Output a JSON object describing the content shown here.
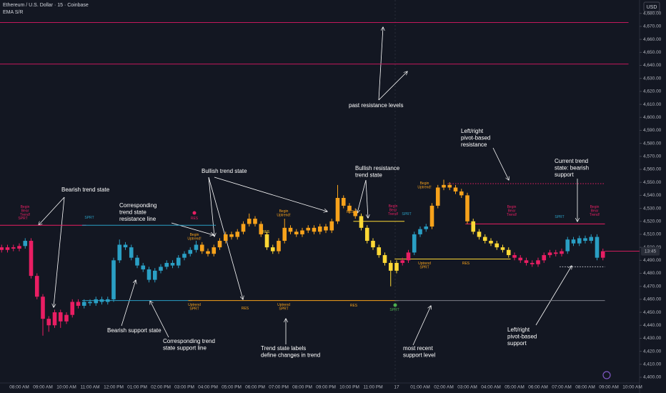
{
  "chart_data": {
    "type": "candlestick",
    "title": "Ethereum / U.S. Dollar · 15 · Coinbase",
    "subtitle": "EMA S/R",
    "currency": "USD",
    "countdown": "13:45",
    "categories": [
      null,
      null,
      null,
      "08:00 AM",
      null,
      null,
      null,
      "09:00 AM",
      null,
      null,
      null,
      "10:00 AM",
      null,
      null,
      null,
      "11:00 AM",
      null,
      null,
      null,
      "12:00 PM",
      null,
      null,
      null,
      "01:00 PM",
      null,
      null,
      null,
      "02:00 PM",
      null,
      null,
      null,
      "03:00 PM",
      null,
      null,
      null,
      "04:00 PM",
      null,
      null,
      null,
      "05:00 PM",
      null,
      null,
      null,
      "06:00 PM",
      null,
      null,
      null,
      "07:00 PM",
      null,
      null,
      null,
      "08:00 PM",
      null,
      null,
      null,
      "09:00 PM",
      null,
      null,
      null,
      "10:00 PM",
      null,
      null,
      null,
      "11:00 PM",
      null,
      null,
      null,
      "17",
      null,
      null,
      null,
      "01:00 AM",
      null,
      null,
      null,
      "02:00 AM",
      null,
      null,
      null,
      "03:00 AM",
      null,
      null,
      null,
      "04:00 AM",
      null,
      null,
      null,
      "05:00 AM",
      null,
      null,
      null,
      "06:00 AM",
      null,
      null,
      null,
      "07:00 AM",
      null,
      null,
      null,
      "08:00 AM",
      null,
      null,
      null,
      "09:00 AM",
      null,
      null,
      null,
      "10:00 AM"
    ],
    "open": [
      4500,
      4498,
      4500,
      4499,
      4501,
      4505,
      4478,
      4462,
      4445,
      4440,
      4450,
      4443,
      4448,
      4458,
      4455,
      4458,
      4457,
      4460,
      4458,
      4460,
      4490,
      4502,
      4500,
      4492,
      4486,
      4483,
      4475,
      4482,
      4485,
      4488,
      4486,
      4492,
      4495,
      4498,
      4502,
      4497,
      4495,
      4500,
      4505,
      4510,
      4508,
      4512,
      4518,
      4522,
      4518,
      4510,
      4500,
      4497,
      4505,
      4515,
      4512,
      4510,
      4513,
      4515,
      4512,
      4516,
      4513,
      4520,
      4538,
      4532,
      4528,
      4524,
      4515,
      4505,
      4500,
      4494,
      4488,
      4482,
      4488,
      4490,
      4496,
      4510,
      4514,
      4516,
      4532,
      4546,
      4548,
      4546,
      4543,
      4540,
      4520,
      4512,
      4508,
      4505,
      4503,
      4500,
      4498,
      4494,
      4492,
      4490,
      4488,
      4487,
      4490,
      4494,
      4496,
      4495,
      4497,
      4506,
      4503,
      4507,
      4505,
      4508,
      4492,
      null,
      null,
      null,
      null,
      null
    ],
    "high": [
      4502,
      4502,
      4502,
      4503,
      4507,
      4507,
      4480,
      4464,
      4447,
      4452,
      4452,
      4450,
      4460,
      4460,
      4460,
      4460,
      4462,
      4462,
      4462,
      4492,
      4506,
      4504,
      4502,
      4494,
      4488,
      4485,
      4484,
      4487,
      4490,
      4490,
      4494,
      4497,
      4500,
      4505,
      4504,
      4499,
      4502,
      4507,
      4512,
      4512,
      4514,
      4520,
      4526,
      4524,
      4520,
      4512,
      4502,
      4507,
      4522,
      4517,
      4514,
      4515,
      4517,
      4517,
      4518,
      4518,
      4522,
      4548,
      4540,
      4534,
      4530,
      4526,
      4517,
      4507,
      4502,
      4496,
      4490,
      4490,
      4492,
      4498,
      4512,
      4516,
      4518,
      4534,
      4548,
      4552,
      4550,
      4548,
      4545,
      4542,
      4522,
      4514,
      4510,
      4507,
      4505,
      4502,
      4500,
      4496,
      4494,
      4492,
      4490,
      4492,
      4496,
      4498,
      4498,
      4499,
      4508,
      4508,
      4509,
      4509,
      4510,
      4510,
      4499,
      null,
      null,
      null,
      null,
      null
    ],
    "low": [
      4496,
      4496,
      4497,
      4497,
      4499,
      4476,
      4460,
      4432,
      4435,
      4438,
      4438,
      4441,
      4446,
      4453,
      4453,
      4455,
      4455,
      4456,
      4456,
      4458,
      4488,
      4498,
      4490,
      4484,
      4481,
      4473,
      4473,
      4480,
      4483,
      4484,
      4484,
      4490,
      4493,
      4496,
      4495,
      4493,
      4493,
      4498,
      4503,
      4506,
      4506,
      4510,
      4516,
      4516,
      4508,
      4498,
      4495,
      4495,
      4503,
      4510,
      4508,
      4508,
      4511,
      4510,
      4510,
      4511,
      4511,
      4518,
      4530,
      4526,
      4522,
      4513,
      4503,
      4498,
      4492,
      4486,
      4470,
      4480,
      4486,
      4488,
      4494,
      4508,
      4512,
      4514,
      4530,
      4544,
      4544,
      4541,
      4538,
      4518,
      4510,
      4506,
      4503,
      4501,
      4498,
      4496,
      4492,
      4490,
      4488,
      4486,
      4485,
      4485,
      4488,
      4492,
      4493,
      4493,
      4495,
      4501,
      4501,
      4503,
      4503,
      4490,
      4490,
      null,
      null,
      null,
      null,
      null
    ],
    "close": [
      4498,
      4500,
      4499,
      4501,
      4505,
      4478,
      4462,
      4445,
      4440,
      4450,
      4443,
      4448,
      4458,
      4455,
      4458,
      4457,
      4460,
      4458,
      4460,
      4490,
      4502,
      4500,
      4492,
      4486,
      4483,
      4475,
      4482,
      4485,
      4488,
      4486,
      4492,
      4495,
      4498,
      4502,
      4497,
      4495,
      4500,
      4505,
      4510,
      4508,
      4512,
      4518,
      4522,
      4518,
      4510,
      4500,
      4497,
      4505,
      4515,
      4512,
      4510,
      4513,
      4515,
      4512,
      4516,
      4513,
      4520,
      4538,
      4532,
      4528,
      4524,
      4515,
      4505,
      4500,
      4494,
      4488,
      4482,
      4488,
      4490,
      4496,
      4510,
      4514,
      4516,
      4532,
      4546,
      4548,
      4546,
      4543,
      4540,
      4520,
      4512,
      4508,
      4505,
      4503,
      4500,
      4498,
      4494,
      4492,
      4490,
      4488,
      4487,
      4490,
      4494,
      4496,
      4495,
      4497,
      4506,
      4503,
      4507,
      4505,
      4508,
      4492,
      4497,
      null,
      null,
      null,
      null,
      null
    ],
    "colors": [
      "#e91e63",
      "#e91e63",
      "#e91e63",
      "#e91e63",
      "#2a9fc4",
      "#e91e63",
      "#e91e63",
      "#e91e63",
      "#e91e63",
      "#e91e63",
      "#e91e63",
      "#e91e63",
      "#e91e63",
      "#e91e63",
      "#2a9fc4",
      "#2a9fc4",
      "#2a9fc4",
      "#2a9fc4",
      "#2a9fc4",
      "#2a9fc4",
      "#2a9fc4",
      "#2a9fc4",
      "#2a9fc4",
      "#2a9fc4",
      "#2a9fc4",
      "#2a9fc4",
      "#2a9fc4",
      "#2a9fc4",
      "#2a9fc4",
      "#2a9fc4",
      "#2a9fc4",
      "#2a9fc4",
      "#2a9fc4",
      "#2a9fc4",
      "#f7a21b",
      "#f7a21b",
      "#f7a21b",
      "#f7a21b",
      "#f7a21b",
      "#f7a21b",
      "#f7a21b",
      "#f7a21b",
      "#f7a21b",
      "#f7a21b",
      "#f7a21b",
      "#fdd835",
      "#fdd835",
      "#f7a21b",
      "#f7a21b",
      "#f7a21b",
      "#f7a21b",
      "#f7a21b",
      "#f7a21b",
      "#f7a21b",
      "#f7a21b",
      "#f7a21b",
      "#f7a21b",
      "#f7a21b",
      "#f7a21b",
      "#f7a21b",
      "#f7a21b",
      "#fdd835",
      "#fdd835",
      "#fdd835",
      "#fdd835",
      "#fdd835",
      "#fdd835",
      "#fdd835",
      "#e91e63",
      "#e91e63",
      "#2a9fc4",
      "#2a9fc4",
      "#2a9fc4",
      "#f7a21b",
      "#f7a21b",
      "#f7a21b",
      "#f7a21b",
      "#f7a21b",
      "#f7a21b",
      "#f7a21b",
      "#fdd835",
      "#fdd835",
      "#fdd835",
      "#fdd835",
      "#fdd835",
      "#fdd835",
      "#fdd835",
      "#e91e63",
      "#e91e63",
      "#e91e63",
      "#e91e63",
      "#e91e63",
      "#e91e63",
      "#e91e63",
      "#e91e63",
      "#e91e63",
      "#2a9fc4",
      "#2a9fc4",
      "#2a9fc4",
      "#2a9fc4",
      "#2a9fc4",
      "#2a9fc4",
      "#e91e63",
      null,
      null,
      null,
      null,
      null
    ],
    "levels": [
      {
        "price": 4673,
        "from": 0,
        "to": 106,
        "color": "#c2185b"
      },
      {
        "price": 4641,
        "from": 0,
        "to": 106,
        "color": "#c2185b"
      },
      {
        "price": 4517,
        "from": 0,
        "to": 14,
        "color": "#e91e63"
      },
      {
        "price": 4517,
        "from": 14,
        "to": 36,
        "color": "#2a9fc4"
      },
      {
        "price": 4459,
        "from": 14,
        "to": 32,
        "color": "#2a9fc4"
      },
      {
        "price": 4459,
        "from": 32,
        "to": 67,
        "color": "#f7a21b"
      },
      {
        "price": 4459,
        "from": 67,
        "to": 102,
        "color": "#787b86"
      },
      {
        "price": 4520,
        "from": 60,
        "to": 68,
        "color": "#fdd835"
      },
      {
        "price": 4491,
        "from": 67,
        "to": 86,
        "color": "#fdd835"
      },
      {
        "price": 4518,
        "from": 79,
        "to": 102,
        "color": "#e91e63"
      },
      {
        "price": 4549,
        "from": 76,
        "to": 102,
        "color": "#e91e63",
        "dashed": true
      },
      {
        "price": 4485,
        "from": 95,
        "to": 102,
        "color": "#d1d4dc",
        "dashed": true
      }
    ],
    "state_labels": [
      {
        "lines": [
          "Begin",
          "Bear",
          "Trend!"
        ],
        "color": "#e91e63"
      },
      {
        "lines": [
          "SPRT"
        ],
        "color": "#e91e63"
      },
      {
        "lines": [
          "SPRT"
        ],
        "color": "#2a9fc4"
      },
      {
        "lines": [
          "RES"
        ],
        "color": "#e91e63"
      },
      {
        "lines": [
          "Begin",
          "Uptrend!"
        ],
        "color": "#f7a21b"
      },
      {
        "lines": [
          "RES"
        ],
        "color": "#fdd835"
      },
      {
        "lines": [
          "Begin",
          "Uptrend!"
        ],
        "color": "#f7a21b"
      },
      {
        "lines": [
          "RES"
        ],
        "color": "#f7a21b"
      },
      {
        "lines": [
          "Begin",
          "Bear",
          "Trend!"
        ],
        "color": "#e91e63"
      },
      {
        "lines": [
          "SPRT"
        ],
        "color": "#2a9fc4"
      },
      {
        "lines": [
          "Begin",
          "Uptrend!"
        ],
        "color": "#f7a21b"
      },
      {
        "lines": [
          "Uptrend",
          "SPRT"
        ],
        "color": "#f7a21b"
      },
      {
        "lines": [
          "RES"
        ],
        "color": "#f7a21b"
      },
      {
        "lines": [
          "Begin",
          "Bear",
          "Trend!"
        ],
        "color": "#e91e63"
      },
      {
        "lines": [
          "SPRT"
        ],
        "color": "#2a9fc4"
      },
      {
        "lines": [
          "Begin",
          "Bear",
          "Trend!"
        ],
        "color": "#e91e63"
      },
      {
        "lines": [
          "Uptrend",
          "SPRT"
        ],
        "color": "#f7a21b"
      },
      {
        "lines": [
          "RES"
        ],
        "color": "#f7a21b"
      },
      {
        "lines": [
          "Uptrend",
          "SPRT"
        ],
        "color": "#f7a21b"
      },
      {
        "lines": [
          "RES"
        ],
        "color": "#f7a21b"
      },
      {
        "lines": [
          "SPRT"
        ],
        "color": "#4caf50"
      }
    ],
    "annotations": [
      {
        "lines": [
          "Bearish  trend state"
        ]
      },
      {
        "lines": [
          "Corresponding",
          "trend state",
          "resistance line"
        ]
      },
      {
        "lines": [
          "Bullish trend state"
        ]
      },
      {
        "lines": [
          "Bullish resistance",
          "trend state"
        ]
      },
      {
        "lines": [
          "Left/right",
          "pivot-based",
          "resistance"
        ]
      },
      {
        "lines": [
          "Current trend",
          "state: bearish",
          "support"
        ]
      },
      {
        "lines": [
          "past resistance levels"
        ]
      },
      {
        "lines": [
          "Bearish support state"
        ]
      },
      {
        "lines": [
          "Corresponding trend",
          "state support line"
        ]
      },
      {
        "lines": [
          "Trend state labels",
          "define changes in trend"
        ]
      },
      {
        "lines": [
          "most recent",
          "support level"
        ]
      },
      {
        "lines": [
          "Left/right",
          "pivot-based",
          "support"
        ]
      }
    ],
    "ylim": [
      4393.4,
      4690.3
    ],
    "yticks": [
      {
        "value": 4400,
        "label": "4,400.00"
      },
      {
        "value": 4410,
        "label": "4,410.00"
      },
      {
        "value": 4420,
        "label": "4,420.00"
      },
      {
        "value": 4430,
        "label": "4,430.00"
      },
      {
        "value": 4440,
        "label": "4,440.00"
      },
      {
        "value": 4450,
        "label": "4,450.00"
      },
      {
        "value": 4460,
        "label": "4,460.00"
      },
      {
        "value": 4470,
        "label": "4,470.00"
      },
      {
        "value": 4480,
        "label": "4,480.00"
      },
      {
        "value": 4490,
        "label": "4,490.00"
      },
      {
        "value": 4500,
        "label": "4,500.00"
      },
      {
        "value": 4510,
        "label": "4,510.00"
      },
      {
        "value": 4520,
        "label": "4,520.00"
      },
      {
        "value": 4530,
        "label": "4,530.00"
      },
      {
        "value": 4540,
        "label": "4,540.00"
      },
      {
        "value": 4550,
        "label": "4,550.00"
      },
      {
        "value": 4560,
        "label": "4,560.00"
      },
      {
        "value": 4570,
        "label": "4,570.00"
      },
      {
        "value": 4580,
        "label": "4,580.00"
      },
      {
        "value": 4590,
        "label": "4,590.00"
      },
      {
        "value": 4600,
        "label": "4,600.00"
      },
      {
        "value": 4610,
        "label": "4,610.00"
      },
      {
        "value": 4620,
        "label": "4,620.00"
      },
      {
        "value": 4630,
        "label": "4,630.00"
      },
      {
        "value": 4640,
        "label": "4,640.00"
      },
      {
        "value": 4650,
        "label": "4,650.00"
      },
      {
        "value": 4660,
        "label": "4,660.00"
      },
      {
        "value": 4670,
        "label": "4,670.00"
      },
      {
        "value": 4680,
        "label": "4,680.00"
      }
    ]
  }
}
